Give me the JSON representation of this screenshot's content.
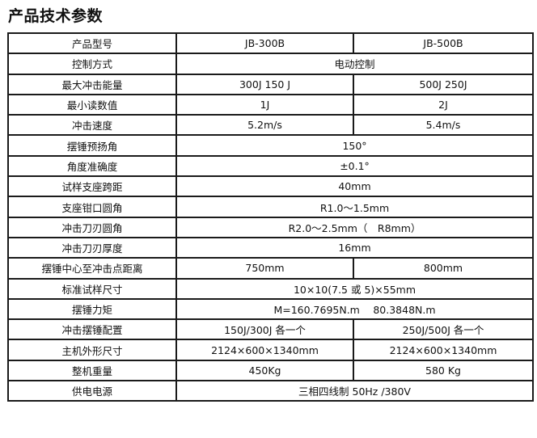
{
  "title": "产品技术参数",
  "rows": [
    [
      "产品型号",
      "JB-300B",
      "JB-500B"
    ],
    [
      "控制方式",
      "电动控制"
    ],
    [
      "最大冲击能量",
      "300J 150 J",
      "500J 250J"
    ],
    [
      "最小读数值",
      "1J",
      "2J"
    ],
    [
      "冲击速度",
      "5.2m/s",
      "5.4m/s"
    ],
    [
      "摆锤预扬角",
      "150°"
    ],
    [
      "角度准确度",
      "±0.1°"
    ],
    [
      "试样支座跨距",
      "40mm"
    ],
    [
      "支座钳口圆角",
      "R1.0～1.5mm"
    ],
    [
      "冲击刀刃圆角",
      "R2.0～2.5mm（　R8mm）"
    ],
    [
      "冲击刀刃厚度",
      "16mm"
    ],
    [
      "摆锤中心至冲击点距离",
      "750mm",
      "800mm"
    ],
    [
      "标准试样尺寸",
      "10×10(7.5 或 5)×55mm"
    ],
    [
      "摆锤力矩",
      "M=160.7695N.m　 80.3848N.m"
    ],
    [
      "冲击摆锤配置",
      "150J/300J 各一个",
      "250J/500J 各一个"
    ],
    [
      "主机外形尺寸",
      "2124×600×1340mm",
      "2124×600×1340mm"
    ],
    [
      "整机重量",
      "450Kg",
      "580 Kg"
    ],
    [
      "供电电源",
      "三相四线制 50Hz /380V"
    ]
  ]
}
